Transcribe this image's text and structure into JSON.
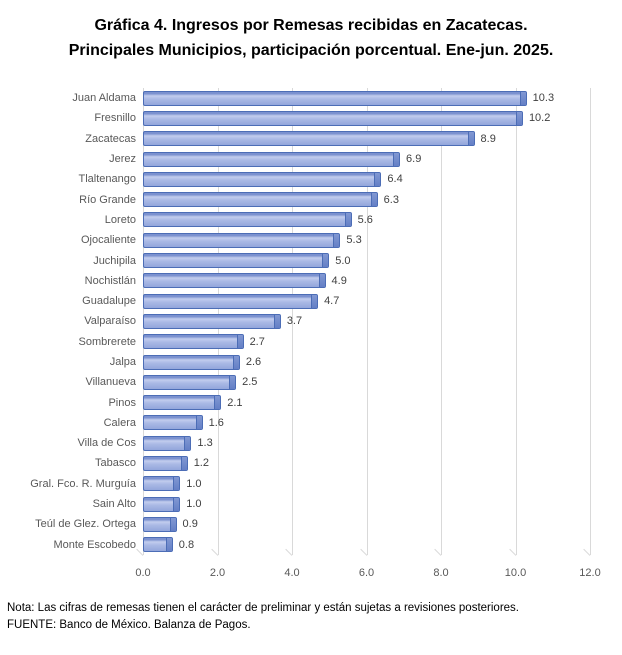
{
  "title": {
    "line1": "Gráfica 4. Ingresos por Remesas recibidas en Zacatecas.",
    "line2": "Principales Municipios, participación porcentual. Ene-jun. 2025."
  },
  "chart_data": {
    "type": "bar",
    "orientation": "horizontal",
    "title": "Gráfica 4. Ingresos por Remesas recibidas en Zacatecas. Principales Municipios, participación porcentual. Ene-jun. 2025.",
    "categories": [
      "Juan Aldama",
      "Fresnillo",
      "Zacatecas",
      "Jerez",
      "Tlaltenango",
      "Río Grande",
      "Loreto",
      "Ojocaliente",
      "Juchipila",
      "Nochistlán",
      "Guadalupe",
      "Valparaíso",
      "Sombrerete",
      "Jalpa",
      "Villanueva",
      "Pinos",
      "Calera",
      "Villa de Cos",
      "Tabasco",
      "Gral. Fco. R. Murguía",
      "Sain Alto",
      "Teúl de Glez. Ortega",
      "Monte Escobedo"
    ],
    "values": [
      10.3,
      10.2,
      8.9,
      6.9,
      6.4,
      6.3,
      5.6,
      5.3,
      5.0,
      4.9,
      4.7,
      3.7,
      2.7,
      2.6,
      2.5,
      2.1,
      1.6,
      1.3,
      1.2,
      1.0,
      1.0,
      0.9,
      0.8
    ],
    "xlabel": "",
    "ylabel": "",
    "xlim": [
      0,
      12
    ],
    "xticks": [
      0,
      2,
      4,
      6,
      8,
      10,
      12
    ],
    "xtick_labels": [
      "0.0",
      "2.0",
      "4.0",
      "6.0",
      "8.0",
      "10.0",
      "12.0"
    ],
    "grid": true,
    "legend": false,
    "colors": {
      "bar_fill": "#A3B3E2",
      "bar_highlight": "#C2CDEE",
      "bar_border": "#4C6DB6",
      "bar_cap": "#647FC6",
      "gridline": "#D9D9D9",
      "category_label": "#595959",
      "value_label": "#404040",
      "axis_label": "#595959",
      "title": "#000000"
    }
  },
  "notes": {
    "note": "Nota: Las cifras de remesas tienen el carácter de preliminar y están sujetas a revisiones posteriores.",
    "source": "FUENTE: Banco de México. Balanza de Pagos."
  }
}
